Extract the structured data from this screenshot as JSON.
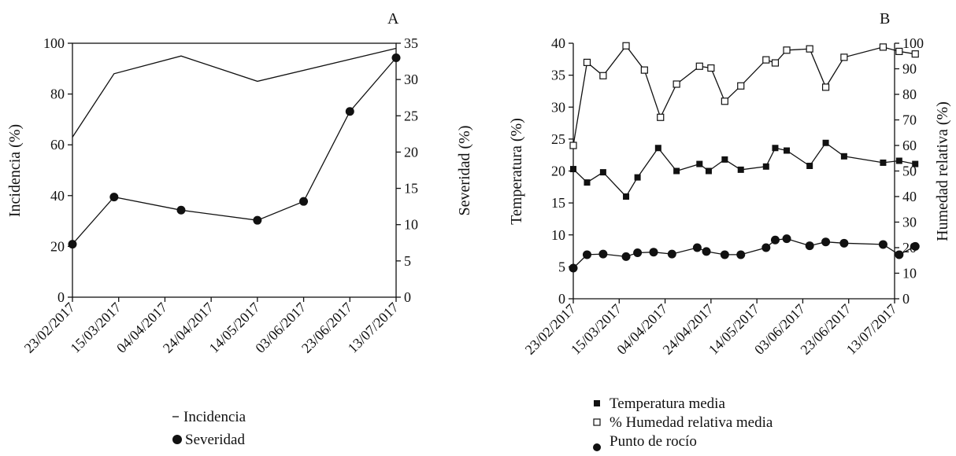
{
  "chart_data": [
    {
      "panel_label": "A",
      "type": "line",
      "x": [
        "23/02/2017",
        "15/03/2017",
        "04/04/2017",
        "24/04/2017",
        "14/05/2017",
        "03/06/2017",
        "23/06/2017",
        "13/07/2017"
      ],
      "ylabel": "Incidencia (%)",
      "ylabel_right": "Severidad (%)",
      "ylim": [
        0,
        100
      ],
      "ylim_right": [
        0,
        35
      ],
      "yticks": [
        0,
        20,
        40,
        60,
        80,
        100
      ],
      "yticks_right": [
        0,
        5,
        10,
        15,
        20,
        25,
        30,
        35
      ],
      "legend_position": "bottom",
      "series": [
        {
          "name": "Incidencia",
          "axis": "left",
          "style": "line",
          "points": [
            [
              "23/02/2017",
              63
            ],
            [
              "13/03/2017",
              88
            ],
            [
              "11/04/2017",
              95
            ],
            [
              "14/05/2017",
              85
            ],
            [
              "13/07/2017",
              98
            ]
          ]
        },
        {
          "name": "Severidad",
          "axis": "right",
          "style": "line-filled-circle",
          "points": [
            [
              "23/02/2017",
              7.3
            ],
            [
              "13/03/2017",
              13.8
            ],
            [
              "11/04/2017",
              12
            ],
            [
              "14/05/2017",
              10.6
            ],
            [
              "03/06/2017",
              13.2
            ],
            [
              "23/06/2017",
              25.6
            ],
            [
              "13/07/2017",
              33
            ]
          ]
        }
      ]
    },
    {
      "panel_label": "B",
      "type": "line",
      "x": [
        "23/02/2017",
        "15/03/2017",
        "04/04/2017",
        "24/04/2017",
        "14/05/2017",
        "03/06/2017",
        "23/06/2017",
        "13/07/2017"
      ],
      "ylabel": "Temperatura (%)",
      "ylabel_right": "Humedad relativa (%)",
      "ylim": [
        0,
        40
      ],
      "ylim_right": [
        0,
        100
      ],
      "yticks": [
        0,
        5,
        10,
        15,
        20,
        25,
        30,
        35,
        40
      ],
      "yticks_right": [
        0,
        10,
        20,
        30,
        40,
        50,
        60,
        70,
        80,
        90,
        100
      ],
      "legend_position": "bottom",
      "series": [
        {
          "name": "Temperatura media",
          "axis": "left",
          "style": "line-filled-square",
          "points": [
            [
              "23/02/2017",
              20.3
            ],
            [
              "01/03/2017",
              18.2
            ],
            [
              "08/03/2017",
              19.8
            ],
            [
              "18/03/2017",
              16
            ],
            [
              "23/03/2017",
              19
            ],
            [
              "01/04/2017",
              23.6
            ],
            [
              "09/04/2017",
              20
            ],
            [
              "19/04/2017",
              21.1
            ],
            [
              "23/04/2017",
              20
            ],
            [
              "30/04/2017",
              21.8
            ],
            [
              "07/05/2017",
              20.2
            ],
            [
              "18/05/2017",
              20.7
            ],
            [
              "22/05/2017",
              23.6
            ],
            [
              "27/05/2017",
              23.2
            ],
            [
              "06/06/2017",
              20.8
            ],
            [
              "13/06/2017",
              24.4
            ],
            [
              "21/06/2017",
              22.3
            ],
            [
              "08/07/2017",
              21.3
            ],
            [
              "15/07/2017",
              21.6
            ],
            [
              "22/07/2017",
              21.1
            ]
          ]
        },
        {
          "name": "% Humedad relativa media",
          "axis": "right",
          "style": "line-open-square",
          "points": [
            [
              "23/02/2017",
              60
            ],
            [
              "01/03/2017",
              92.5
            ],
            [
              "08/03/2017",
              87.3
            ],
            [
              "18/03/2017",
              99
            ],
            [
              "26/03/2017",
              89.5
            ],
            [
              "02/04/2017",
              71
            ],
            [
              "09/04/2017",
              84
            ],
            [
              "19/04/2017",
              91
            ],
            [
              "24/04/2017",
              90.3
            ],
            [
              "30/04/2017",
              77.3
            ],
            [
              "07/05/2017",
              83.3
            ],
            [
              "18/05/2017",
              93.5
            ],
            [
              "22/05/2017",
              92.3
            ],
            [
              "27/05/2017",
              97.3
            ],
            [
              "06/06/2017",
              97.8
            ],
            [
              "13/06/2017",
              82.8
            ],
            [
              "21/06/2017",
              94.5
            ],
            [
              "08/07/2017",
              98.5
            ],
            [
              "15/07/2017",
              96.8
            ],
            [
              "22/07/2017",
              95.8
            ]
          ]
        },
        {
          "name": "Punto de rocío",
          "axis": "left",
          "style": "line-filled-circle",
          "points": [
            [
              "23/02/2017",
              4.8
            ],
            [
              "01/03/2017",
              6.9
            ],
            [
              "08/03/2017",
              7
            ],
            [
              "18/03/2017",
              6.6
            ],
            [
              "23/03/2017",
              7.2
            ],
            [
              "30/03/2017",
              7.3
            ],
            [
              "07/04/2017",
              7
            ],
            [
              "18/04/2017",
              8
            ],
            [
              "22/04/2017",
              7.4
            ],
            [
              "30/04/2017",
              6.9
            ],
            [
              "07/05/2017",
              6.9
            ],
            [
              "18/05/2017",
              8
            ],
            [
              "22/05/2017",
              9.2
            ],
            [
              "27/05/2017",
              9.4
            ],
            [
              "06/06/2017",
              8.3
            ],
            [
              "13/06/2017",
              8.9
            ],
            [
              "21/06/2017",
              8.7
            ],
            [
              "08/07/2017",
              8.5
            ],
            [
              "15/07/2017",
              6.9
            ],
            [
              "22/07/2017",
              8.2
            ]
          ]
        }
      ]
    }
  ]
}
